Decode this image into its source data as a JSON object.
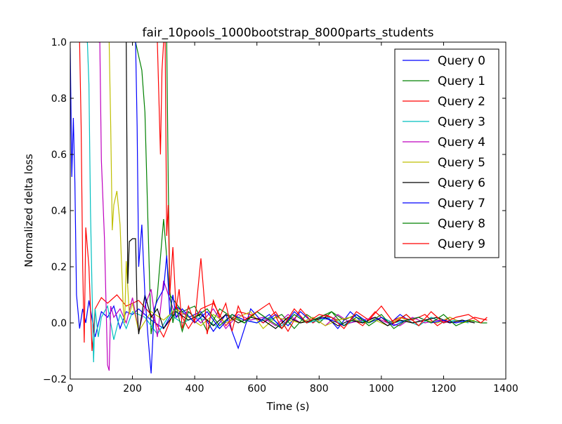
{
  "chart_data": {
    "type": "line",
    "title": "fair_10pools_1000bootstrap_8000parts_students",
    "xlabel": "Time (s)",
    "ylabel": "Normalized delta loss",
    "xlim": [
      0,
      1400
    ],
    "ylim": [
      -0.2,
      1.0
    ],
    "xticks": [
      0,
      200,
      400,
      600,
      800,
      1000,
      1200,
      1400
    ],
    "yticks": [
      -0.2,
      0.0,
      0.2,
      0.4,
      0.6,
      0.8,
      1.0
    ],
    "xtick_labels": [
      "0",
      "200",
      "400",
      "600",
      "800",
      "1000",
      "1200",
      "1400"
    ],
    "ytick_labels": [
      "−0.2",
      "0.0",
      "0.2",
      "0.4",
      "0.6",
      "0.8",
      "1.0"
    ],
    "grid": false,
    "legend_position": "top-right",
    "series": [
      {
        "name": "Query 0",
        "color": "#0000ff",
        "x": [
          0,
          5,
          10,
          15,
          20,
          30,
          40,
          50,
          60,
          80,
          100,
          120,
          140,
          160,
          180,
          200,
          220,
          260,
          300,
          340,
          380,
          420,
          460,
          500,
          540,
          580,
          620,
          660,
          700,
          740,
          780,
          820,
          860,
          900,
          940,
          980,
          1020,
          1060,
          1100,
          1140,
          1180,
          1220,
          1260
        ],
        "y": [
          0.98,
          0.52,
          0.73,
          0.5,
          0.1,
          -0.02,
          0.05,
          0.0,
          0.08,
          -0.05,
          0.04,
          0.02,
          0.06,
          -0.02,
          0.04,
          0.03,
          0.05,
          0.01,
          -0.02,
          0.06,
          0.02,
          0.04,
          -0.03,
          0.03,
          -0.09,
          0.05,
          0.0,
          0.03,
          -0.01,
          0.04,
          0.0,
          0.03,
          -0.02,
          0.04,
          0.0,
          0.02,
          -0.01,
          0.03,
          0.0,
          0.01,
          0.0,
          0.02,
          0.0
        ]
      },
      {
        "name": "Query 1",
        "color": "#008000",
        "x": [
          200,
          210,
          220,
          230,
          240,
          250,
          260,
          280,
          300,
          320,
          360,
          400,
          440,
          480,
          520,
          560,
          600,
          640,
          680,
          720,
          760,
          800,
          840,
          880,
          920,
          960,
          1000,
          1040,
          1080,
          1120,
          1160,
          1200,
          1240
        ],
        "y": [
          1.0,
          1.0,
          0.95,
          0.9,
          0.75,
          0.35,
          -0.04,
          0.1,
          0.37,
          0.1,
          0.04,
          0.06,
          -0.03,
          0.05,
          0.02,
          0.0,
          0.04,
          0.01,
          0.03,
          -0.02,
          0.03,
          0.0,
          0.04,
          0.01,
          0.03,
          -0.01,
          0.02,
          0.0,
          0.03,
          -0.01,
          0.02,
          0.0,
          0.01
        ]
      },
      {
        "name": "Query 2",
        "color": "#ff0000",
        "x": [
          30,
          35,
          40,
          45,
          50,
          60,
          70,
          80,
          100,
          120,
          150,
          180,
          220,
          260,
          300,
          340,
          380,
          420,
          460,
          500,
          540,
          580,
          620,
          660,
          700,
          740,
          780,
          820,
          860,
          900,
          940,
          980,
          1020,
          1060,
          1100,
          1140,
          1180,
          1220,
          1260,
          1300,
          1340
        ],
        "y": [
          1.0,
          0.7,
          0.2,
          -0.07,
          0.34,
          0.2,
          -0.1,
          0.05,
          0.09,
          0.07,
          0.1,
          0.06,
          0.08,
          0.03,
          -0.05,
          0.06,
          -0.02,
          0.05,
          0.07,
          -0.01,
          0.04,
          0.03,
          0.0,
          0.04,
          -0.03,
          0.05,
          0.0,
          0.03,
          0.01,
          0.02,
          -0.01,
          0.04,
          0.0,
          0.02,
          0.01,
          0.03,
          -0.01,
          0.02,
          0.0,
          0.02,
          0.01
        ]
      },
      {
        "name": "Query 3",
        "color": "#00bfbf",
        "x": [
          50,
          55,
          60,
          65,
          70,
          75,
          80,
          90,
          100,
          120,
          140,
          160,
          180,
          200,
          240,
          280,
          320,
          360,
          400,
          440,
          480,
          520,
          560,
          600,
          640,
          680,
          720,
          760,
          800,
          840,
          880,
          920,
          960,
          1000,
          1040,
          1080,
          1120,
          1160,
          1200,
          1240,
          1280
        ],
        "y": [
          1.0,
          1.0,
          0.85,
          0.4,
          0.12,
          -0.14,
          0.05,
          -0.05,
          0.02,
          0.06,
          -0.06,
          0.03,
          -0.02,
          0.04,
          0.02,
          -0.04,
          0.03,
          0.0,
          0.02,
          0.01,
          -0.02,
          0.03,
          0.01,
          0.0,
          0.02,
          -0.01,
          0.03,
          0.0,
          0.01,
          0.02,
          -0.01,
          0.01,
          0.0,
          0.02,
          0.0,
          0.01,
          -0.01,
          0.02,
          0.0,
          0.01,
          0.0
        ]
      },
      {
        "name": "Query 4",
        "color": "#bf00bf",
        "x": [
          90,
          95,
          100,
          110,
          120,
          125,
          130,
          140,
          160,
          180,
          200,
          220,
          240,
          260,
          280,
          300,
          340,
          380,
          420,
          460,
          500,
          540,
          580,
          620,
          660,
          700,
          740,
          780,
          820,
          860,
          900,
          940,
          980,
          1020,
          1060,
          1100,
          1140,
          1180,
          1220,
          1260
        ],
        "y": [
          1.0,
          1.0,
          0.58,
          0.3,
          -0.15,
          -0.17,
          0.06,
          0.02,
          0.05,
          0.0,
          0.09,
          -0.03,
          0.06,
          0.12,
          -0.05,
          0.15,
          0.02,
          0.04,
          0.0,
          0.05,
          -0.02,
          0.03,
          0.01,
          0.02,
          -0.01,
          0.03,
          0.0,
          0.02,
          -0.01,
          0.03,
          0.0,
          0.01,
          0.02,
          0.0,
          -0.01,
          0.02,
          0.0,
          0.01,
          0.0,
          0.01
        ]
      },
      {
        "name": "Query 5",
        "color": "#bfbf00",
        "x": [
          125,
          130,
          135,
          140,
          150,
          160,
          170,
          175,
          180,
          190,
          200,
          220,
          260,
          300,
          340,
          380,
          420,
          460,
          500,
          540,
          580,
          620,
          660,
          700,
          740,
          780,
          820,
          860,
          900,
          940,
          980,
          1020,
          1060,
          1100,
          1140,
          1180,
          1220,
          1260,
          1300
        ],
        "y": [
          1.0,
          0.7,
          0.33,
          0.42,
          0.47,
          0.35,
          0.06,
          0.0,
          0.22,
          0.03,
          0.07,
          -0.03,
          0.04,
          0.01,
          0.05,
          0.02,
          -0.01,
          0.03,
          0.0,
          0.02,
          0.04,
          -0.02,
          0.02,
          0.01,
          0.0,
          0.02,
          -0.01,
          0.01,
          0.02,
          0.0,
          0.01,
          -0.01,
          0.02,
          0.0,
          0.01,
          0.0,
          0.02,
          0.0,
          0.01
        ]
      },
      {
        "name": "Query 6",
        "color": "#000000",
        "x": [
          180,
          185,
          190,
          200,
          210,
          215,
          220,
          240,
          260,
          280,
          300,
          340,
          380,
          420,
          460,
          500,
          540,
          580,
          620,
          660,
          700,
          740,
          780,
          820,
          860,
          900,
          940,
          980,
          1020,
          1060,
          1100,
          1140,
          1180,
          1220,
          1260,
          1300
        ],
        "y": [
          1.0,
          0.14,
          0.29,
          0.3,
          0.3,
          0.05,
          -0.04,
          0.1,
          0.02,
          0.05,
          -0.02,
          0.04,
          0.01,
          0.03,
          -0.01,
          0.03,
          0.0,
          0.02,
          0.01,
          -0.02,
          0.02,
          0.0,
          0.01,
          0.02,
          -0.01,
          0.01,
          0.0,
          0.02,
          -0.01,
          0.01,
          0.0,
          0.01,
          0.02,
          0.0,
          0.01,
          0.0
        ]
      },
      {
        "name": "Query 7",
        "color": "#0000ff",
        "x": [
          210,
          215,
          220,
          230,
          240,
          250,
          260,
          270,
          280,
          300,
          310,
          320,
          330,
          340,
          360,
          400,
          440,
          480,
          520,
          560,
          600,
          640,
          680,
          720,
          760,
          800,
          840,
          880,
          920,
          960,
          1000,
          1040,
          1080,
          1120,
          1160,
          1200,
          1240,
          1280
        ],
        "y": [
          1.0,
          0.7,
          0.2,
          0.35,
          0.1,
          -0.05,
          -0.18,
          0.05,
          0.08,
          0.12,
          0.24,
          0.03,
          0.1,
          0.02,
          0.05,
          0.0,
          0.04,
          -0.02,
          0.03,
          0.01,
          0.0,
          0.03,
          -0.02,
          0.04,
          0.0,
          0.02,
          0.01,
          -0.01,
          0.03,
          0.0,
          0.02,
          -0.01,
          0.01,
          0.02,
          0.0,
          0.01,
          0.0,
          0.01
        ]
      },
      {
        "name": "Query 8",
        "color": "#008000",
        "x": [
          310,
          315,
          320,
          330,
          340,
          360,
          380,
          400,
          440,
          480,
          520,
          560,
          600,
          640,
          680,
          720,
          760,
          800,
          840,
          880,
          920,
          960,
          1000,
          1040,
          1080,
          1120,
          1160,
          1200,
          1240,
          1280,
          1320,
          1340
        ],
        "y": [
          1.0,
          0.5,
          0.12,
          0.0,
          0.06,
          -0.03,
          0.04,
          0.02,
          0.05,
          -0.01,
          0.03,
          0.0,
          0.04,
          0.01,
          -0.02,
          0.03,
          0.0,
          0.02,
          0.04,
          -0.01,
          0.02,
          0.0,
          0.03,
          -0.02,
          0.01,
          0.02,
          0.0,
          0.03,
          -0.01,
          0.01,
          0.0,
          0.0
        ]
      },
      {
        "name": "Query 9",
        "color": "#ff0000",
        "x": [
          280,
          290,
          295,
          300,
          305,
          310,
          315,
          320,
          330,
          340,
          350,
          360,
          380,
          400,
          420,
          440,
          460,
          480,
          500,
          520,
          540,
          560,
          600,
          640,
          680,
          720,
          760,
          800,
          840,
          880,
          920,
          960,
          1000,
          1040,
          1080,
          1120,
          1160,
          1200,
          1240,
          1280,
          1320,
          1340
        ],
        "y": [
          1.0,
          0.6,
          0.9,
          1.0,
          1.0,
          0.31,
          0.42,
          0.1,
          0.27,
          0.05,
          0.12,
          -0.02,
          0.06,
          0.0,
          0.23,
          -0.04,
          0.08,
          0.02,
          0.07,
          -0.03,
          0.06,
          0.01,
          0.04,
          0.07,
          -0.02,
          0.05,
          0.0,
          0.03,
          0.02,
          -0.02,
          0.04,
          0.01,
          0.06,
          0.0,
          0.03,
          -0.01,
          0.04,
          0.0,
          0.02,
          0.03,
          0.0,
          0.02
        ]
      }
    ]
  }
}
